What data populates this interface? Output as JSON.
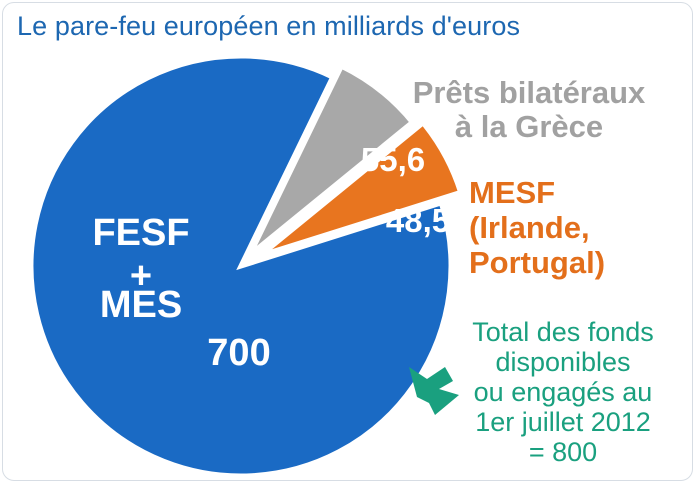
{
  "chart_data": {
    "type": "pie",
    "title": "Le pare-feu européen en milliards d'euros",
    "slices": [
      {
        "name_lines": [
          "FESF",
          "+",
          "MES"
        ],
        "value": 700,
        "value_label": "700",
        "color": "#1a6ac4"
      },
      {
        "name_lines": [
          "Prêts bilatéraux",
          "à la Grèce"
        ],
        "value": 55.6,
        "value_label": "55,6",
        "color": "#a8a8a8"
      },
      {
        "name_lines": [
          "MESF",
          "(Irlande,",
          "Portugal)"
        ],
        "value": 48.5,
        "value_label": "48,5",
        "color": "#e8751f"
      }
    ],
    "annotation": {
      "lines": [
        "Total des fonds",
        "disponibles",
        "ou engagés au",
        "1er juillet 2012",
        "= 800"
      ],
      "color": "#1aa07f"
    }
  }
}
